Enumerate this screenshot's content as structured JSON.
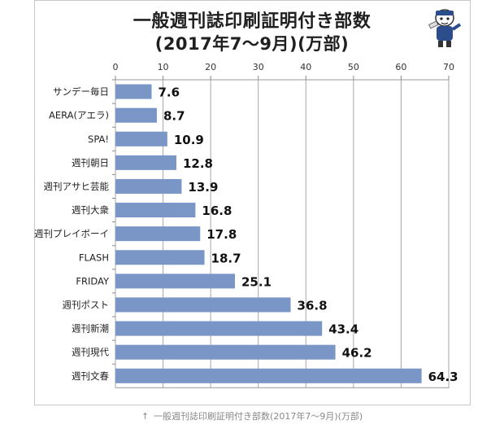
{
  "chart_data": {
    "type": "bar",
    "orientation": "horizontal",
    "title": "一般週刊誌印刷証明付き部数",
    "subtitle": "(2017年7〜9月)(万部)",
    "categories": [
      "サンデー毎日",
      "AERA(アエラ)",
      "SPA!",
      "週刊朝日",
      "週刊アサヒ芸能",
      "週刊大衆",
      "週刊プレイボーイ",
      "FLASH",
      "FRIDAY",
      "週刊ポスト",
      "週刊新潮",
      "週刊現代",
      "週刊文春"
    ],
    "values": [
      7.6,
      8.7,
      10.9,
      12.8,
      13.9,
      16.8,
      17.8,
      18.7,
      25.1,
      36.8,
      43.4,
      46.2,
      64.3
    ],
    "value_labels": [
      "7.6",
      "8.7",
      "10.9",
      "12.8",
      "13.9",
      "16.8",
      "17.8",
      "18.7",
      "25.1",
      "36.8",
      "43.4",
      "46.2",
      "64.3"
    ],
    "xlim": [
      0,
      70
    ],
    "xticks": [
      "0",
      "10",
      "20",
      "30",
      "40",
      "50",
      "60",
      "70"
    ],
    "axis_position": "top",
    "grid": true,
    "bar_color": "#7a96c6"
  },
  "caption": {
    "arrow": "↑",
    "text": "一般週刊誌印刷証明付き部数(2017年7〜9月)(万部)"
  }
}
